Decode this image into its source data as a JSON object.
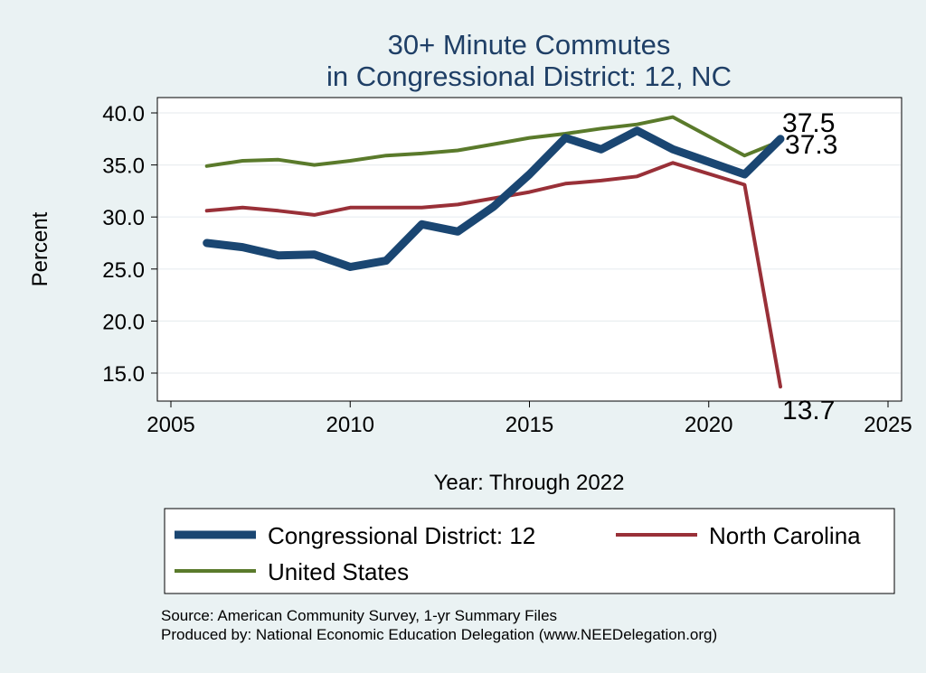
{
  "chart_data": {
    "type": "line",
    "title": [
      "30+ Minute Commutes",
      "in Congressional District:  12, NC"
    ],
    "xlabel": "Year: Through 2022",
    "ylabel": "Percent",
    "xlim": [
      2005,
      2025
    ],
    "ylim": [
      13.0,
      41.5
    ],
    "xticks": [
      2005,
      2010,
      2015,
      2020,
      2025
    ],
    "yticks": [
      15.0,
      20.0,
      25.0,
      30.0,
      35.0,
      40.0
    ],
    "ytick_labels": [
      "15.0",
      "20.0",
      "25.0",
      "30.0",
      "35.0",
      "40.0"
    ],
    "x": [
      2006,
      2007,
      2008,
      2009,
      2010,
      2011,
      2012,
      2013,
      2014,
      2015,
      2016,
      2017,
      2018,
      2019,
      2021,
      2022
    ],
    "series": [
      {
        "name": "Congressional District:  12",
        "color": "#1a4672",
        "values": [
          27.5,
          27.1,
          26.3,
          26.4,
          25.2,
          25.8,
          29.3,
          28.6,
          31.0,
          34.1,
          37.6,
          36.5,
          38.3,
          36.5,
          34.1,
          37.5
        ],
        "end_label": "37.5"
      },
      {
        "name": "North Carolina",
        "color": "#993038",
        "values": [
          30.6,
          30.9,
          30.6,
          30.2,
          30.9,
          30.9,
          30.9,
          31.2,
          31.8,
          32.4,
          33.2,
          33.5,
          33.9,
          35.2,
          33.1,
          13.7
        ],
        "end_label": "13.7"
      },
      {
        "name": "United States",
        "color": "#5a7a2b",
        "values": [
          34.9,
          35.4,
          35.5,
          35.0,
          35.4,
          35.9,
          36.1,
          36.4,
          37.0,
          37.6,
          38.0,
          38.5,
          38.9,
          39.6,
          35.9,
          37.3
        ],
        "end_label": "37.3"
      }
    ],
    "legend": [
      "Congressional District:  12",
      "North Carolina",
      "United States"
    ],
    "legend_position": "bottom",
    "grid": true
  },
  "source_lines": [
    "Source: American Community Survey, 1-yr Summary Files",
    "Produced by: National Economic Education Delegation (www.NEEDelegation.org)"
  ]
}
